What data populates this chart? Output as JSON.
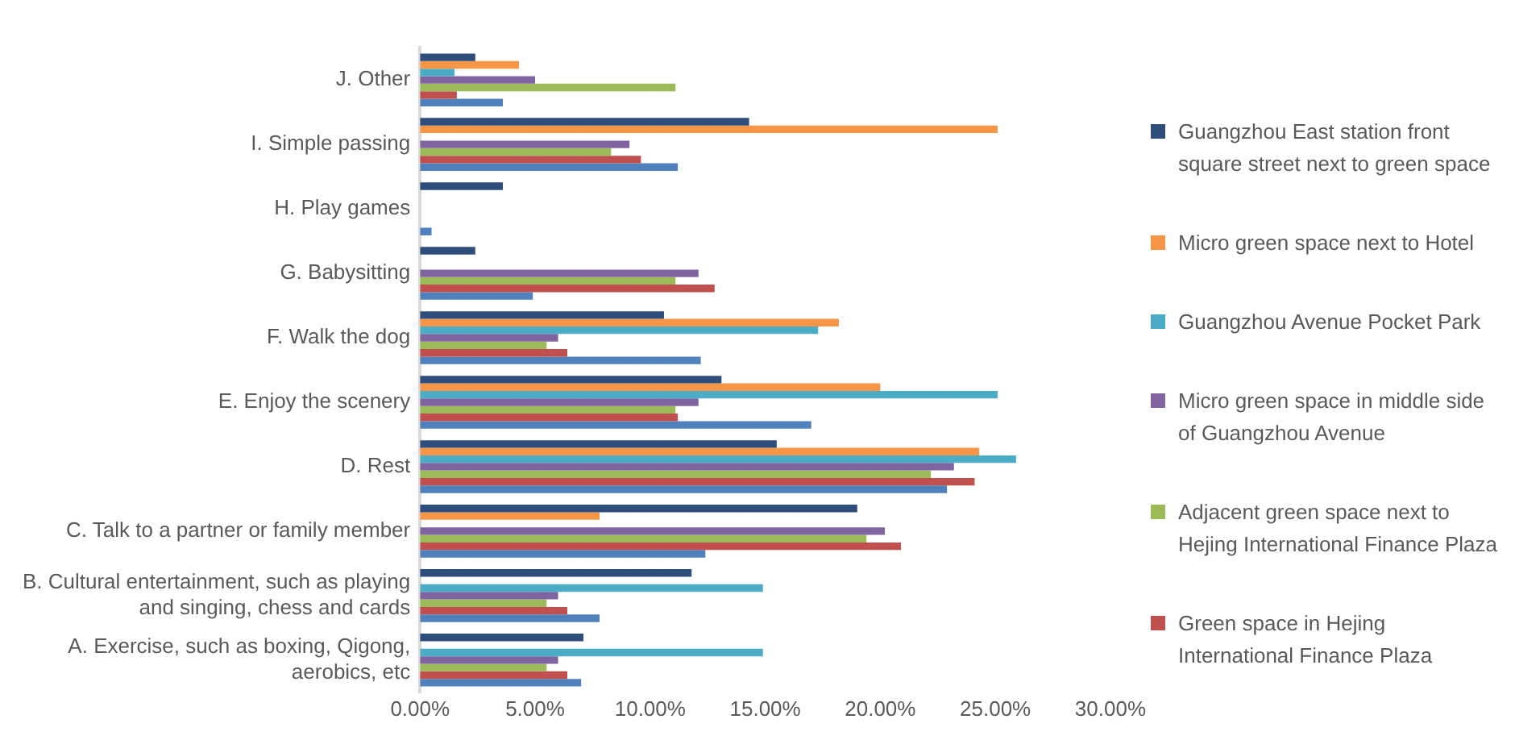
{
  "chart_data": {
    "type": "bar",
    "orientation": "horizontal",
    "categories": [
      "J. Other",
      "I. Simple passing",
      "H. Play games",
      "G. Babysitting",
      "F. Walk the dog",
      "E. Enjoy the scenery",
      "D. Rest",
      "C. Talk to a partner or family member",
      "B. Cultural entertainment, such as playing and singing, chess and cards",
      "A. Exercise, such as boxing, Qigong, aerobics, etc"
    ],
    "series": [
      {
        "name": "Guangzhou East station front square street next to green space",
        "color": "#2e4d7b",
        "values": [
          2.4,
          14.3,
          3.6,
          2.4,
          10.6,
          13.1,
          15.5,
          19.0,
          11.8,
          7.1
        ]
      },
      {
        "name": "Micro green space next to Hotel",
        "color": "#f79646",
        "values": [
          4.3,
          25.1,
          0,
          0,
          18.2,
          20.0,
          24.3,
          7.8,
          0,
          0
        ]
      },
      {
        "name": "Guangzhou Avenue Pocket Park",
        "color": "#4bacc6",
        "values": [
          1.5,
          0,
          0,
          0,
          17.3,
          25.1,
          25.9,
          0,
          14.9,
          14.9
        ]
      },
      {
        "name": "Micro green space in middle side of Guangzhou Avenue",
        "color": "#8064a2",
        "values": [
          5.0,
          9.1,
          0,
          12.1,
          6.0,
          12.1,
          23.2,
          20.2,
          6.0,
          6.0
        ]
      },
      {
        "name": "Adjacent green space next to Hejing International Finance Plaza",
        "color": "#9bbb59",
        "values": [
          11.1,
          8.3,
          0,
          11.1,
          5.5,
          11.1,
          22.2,
          19.4,
          5.5,
          5.5
        ]
      },
      {
        "name": "Green space in Hejing International Finance Plaza",
        "color": "#c0504d",
        "values": [
          1.6,
          9.6,
          0,
          12.8,
          6.4,
          11.2,
          24.1,
          20.9,
          6.4,
          6.4
        ]
      },
      {
        "color": "#4f81bd",
        "values": [
          3.6,
          11.2,
          0.5,
          4.9,
          12.2,
          17.0,
          22.9,
          12.4,
          7.8,
          7.0
        ]
      }
    ],
    "xlim": [
      0,
      30
    ],
    "xticks": [
      {
        "value": 0,
        "label": "0.00%"
      },
      {
        "value": 5,
        "label": "5.00%"
      },
      {
        "value": 10,
        "label": "10.00%"
      },
      {
        "value": 15,
        "label": "15.00%"
      },
      {
        "value": 20,
        "label": "20.00%"
      },
      {
        "value": 25,
        "label": "25.00%"
      },
      {
        "value": 30,
        "label": "30.00%"
      }
    ],
    "grid": false,
    "legend": "right"
  }
}
